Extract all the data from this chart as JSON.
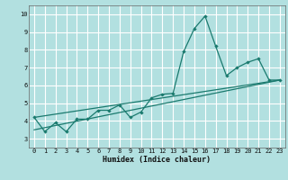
{
  "title": "",
  "xlabel": "Humidex (Indice chaleur)",
  "ylabel": "",
  "background_color": "#b2e0e0",
  "grid_color": "#ffffff",
  "line_color": "#1a7a6e",
  "xlim": [
    -0.5,
    23.5
  ],
  "ylim": [
    2.5,
    10.5
  ],
  "xticks": [
    0,
    1,
    2,
    3,
    4,
    5,
    6,
    7,
    8,
    9,
    10,
    11,
    12,
    13,
    14,
    15,
    16,
    17,
    18,
    19,
    20,
    21,
    22,
    23
  ],
  "yticks": [
    3,
    4,
    5,
    6,
    7,
    8,
    9,
    10
  ],
  "series1_x": [
    0,
    1,
    2,
    3,
    4,
    5,
    6,
    7,
    8,
    9,
    10,
    11,
    12,
    13,
    14,
    15,
    16,
    17,
    18,
    19,
    20,
    21,
    22,
    23
  ],
  "series1_y": [
    4.2,
    3.4,
    3.9,
    3.4,
    4.1,
    4.1,
    4.6,
    4.6,
    4.9,
    4.2,
    4.5,
    5.3,
    5.5,
    5.55,
    7.9,
    9.2,
    9.9,
    8.2,
    6.55,
    7.0,
    7.3,
    7.5,
    6.3,
    6.3
  ],
  "series2_x": [
    0,
    23
  ],
  "series2_y": [
    3.5,
    6.3
  ],
  "series3_x": [
    0,
    23
  ],
  "series3_y": [
    4.2,
    6.3
  ]
}
